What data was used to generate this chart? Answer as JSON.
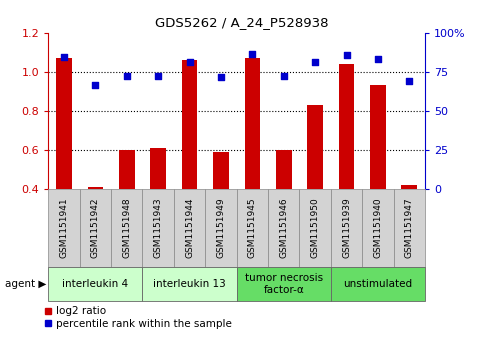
{
  "title": "GDS5262 / A_24_P528938",
  "samples": [
    "GSM1151941",
    "GSM1151942",
    "GSM1151948",
    "GSM1151943",
    "GSM1151944",
    "GSM1151949",
    "GSM1151945",
    "GSM1151946",
    "GSM1151950",
    "GSM1151939",
    "GSM1151940",
    "GSM1151947"
  ],
  "log2_ratio": [
    1.07,
    0.41,
    0.6,
    0.61,
    1.06,
    0.59,
    1.07,
    0.6,
    0.83,
    1.04,
    0.93,
    0.42
  ],
  "percentile_rank": [
    84.5,
    66.5,
    72.5,
    72.0,
    81.0,
    71.5,
    86.5,
    72.5,
    81.0,
    85.5,
    83.0,
    69.0
  ],
  "agents": [
    {
      "label": "interleukin 4",
      "start": 0,
      "end": 3,
      "color": "#ccffcc"
    },
    {
      "label": "interleukin 13",
      "start": 3,
      "end": 6,
      "color": "#ccffcc"
    },
    {
      "label": "tumor necrosis\nfactor-α",
      "start": 6,
      "end": 9,
      "color": "#66dd66"
    },
    {
      "label": "unstimulated",
      "start": 9,
      "end": 12,
      "color": "#66dd66"
    }
  ],
  "bar_color": "#cc0000",
  "scatter_color": "#0000cc",
  "ylim_left": [
    0.4,
    1.2
  ],
  "ylim_right": [
    0,
    100
  ],
  "yticks_left": [
    0.4,
    0.6,
    0.8,
    1.0,
    1.2
  ],
  "yticks_right": [
    0,
    25,
    50,
    75,
    100
  ],
  "ytick_labels_right": [
    "0",
    "25",
    "50",
    "75",
    "100%"
  ],
  "bar_width": 0.5,
  "legend_log2": "log2 ratio",
  "legend_pct": "percentile rank within the sample",
  "background_color": "#ffffff",
  "sample_bg_color": "#d3d3d3",
  "grid_yticks": [
    0.6,
    0.8,
    1.0
  ]
}
